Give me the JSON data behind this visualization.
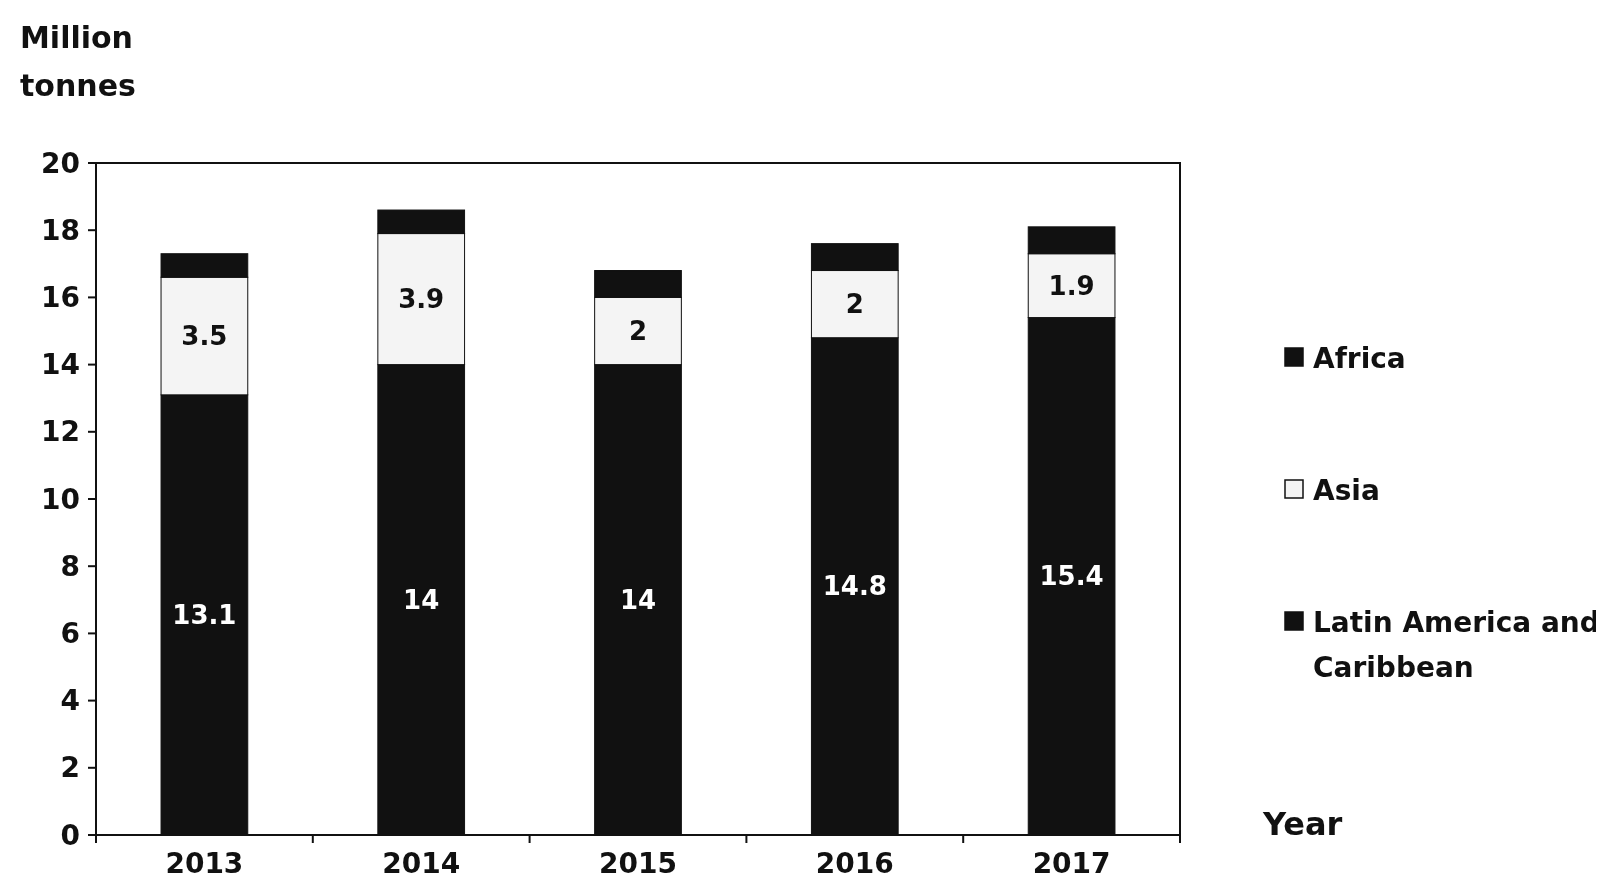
{
  "chart_data": {
    "type": "bar",
    "stacked": true,
    "xlabel": "Year",
    "ylabel": "Million tonnes",
    "categories": [
      "2013",
      "2014",
      "2015",
      "2016",
      "2017"
    ],
    "ylim": [
      0,
      20
    ],
    "yticks": [
      0,
      2,
      4,
      6,
      8,
      10,
      12,
      14,
      16,
      18,
      20
    ],
    "grid": false,
    "legend": "right",
    "series": [
      {
        "name": "Latin America and Caribbean",
        "color": "#111111",
        "values": [
          13.1,
          14,
          14,
          14.8,
          15.4
        ],
        "value_labels": [
          "13.1",
          "14",
          "14",
          "14.8",
          "15.4"
        ]
      },
      {
        "name": "Asia",
        "color": "#f4f4f4",
        "values": [
          3.5,
          3.9,
          2,
          2,
          1.9
        ],
        "value_labels": [
          "3.5",
          "3.9",
          "2",
          "2",
          "1.9"
        ]
      },
      {
        "name": "Africa",
        "color": "#111111",
        "values": [
          0.7,
          0.7,
          0.8,
          0.8,
          0.8
        ]
      }
    ]
  }
}
